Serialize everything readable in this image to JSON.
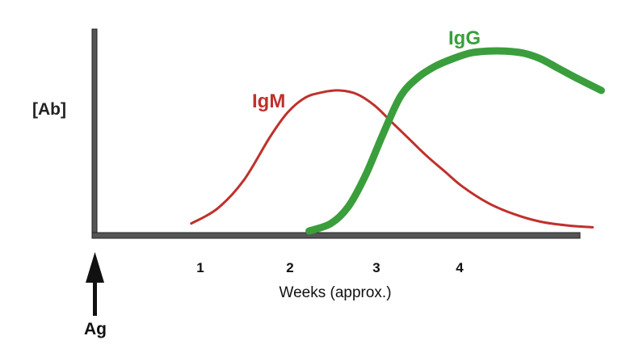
{
  "chart_data": {
    "type": "line",
    "xlabel": "Weeks (approx.)",
    "ylabel": "[Ab]",
    "xticks": [
      "1",
      "2",
      "3",
      "4"
    ],
    "xlim": [
      0,
      5.7
    ],
    "ylim": [
      0,
      1
    ],
    "grid": false,
    "annotation": {
      "label": "Ag",
      "x": 0,
      "shape": "up-arrow"
    },
    "series": [
      {
        "name": "IgM",
        "color": "#c0302b",
        "x": [
          1.1,
          1.4,
          1.7,
          2.0,
          2.2,
          2.4,
          2.6,
          2.8,
          3.0,
          3.2,
          3.4,
          3.6,
          3.8,
          4.0,
          4.2,
          4.5,
          4.8,
          5.1,
          5.4,
          5.7
        ],
        "y": [
          0.04,
          0.12,
          0.27,
          0.5,
          0.63,
          0.71,
          0.74,
          0.75,
          0.73,
          0.67,
          0.58,
          0.49,
          0.4,
          0.32,
          0.24,
          0.15,
          0.09,
          0.05,
          0.03,
          0.02
        ]
      },
      {
        "name": "IgG",
        "color": "#3a9e3c",
        "x": [
          2.45,
          2.7,
          2.9,
          3.1,
          3.3,
          3.5,
          3.7,
          3.9,
          4.1,
          4.3,
          4.5,
          4.7,
          4.9,
          5.1,
          5.3,
          5.5,
          5.8
        ],
        "y": [
          0.0,
          0.04,
          0.13,
          0.3,
          0.52,
          0.72,
          0.82,
          0.88,
          0.92,
          0.95,
          0.96,
          0.96,
          0.95,
          0.92,
          0.87,
          0.82,
          0.75
        ]
      }
    ]
  }
}
